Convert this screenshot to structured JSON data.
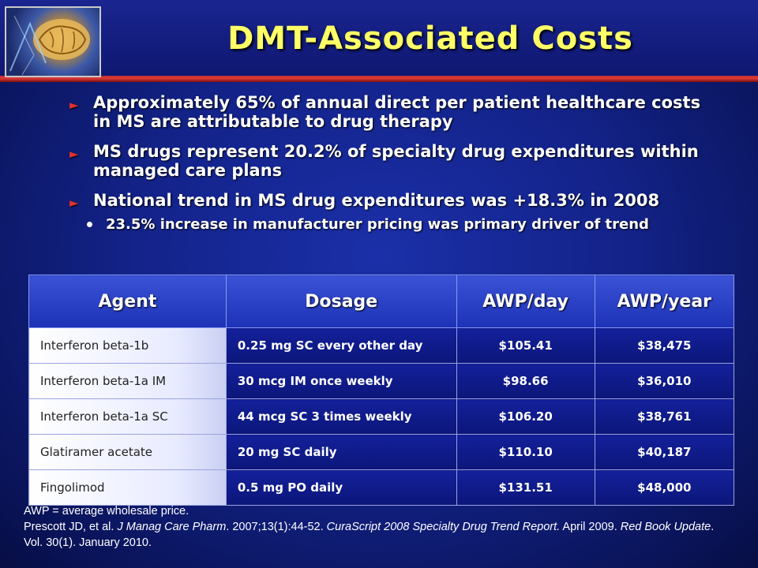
{
  "slide": {
    "title": "DMT-Associated Costs",
    "bullets": [
      "Approximately 65% of annual direct per patient healthcare costs in MS are attributable to drug therapy",
      "MS drugs represent 20.2% of specialty drug expenditures within managed care plans",
      "National trend in MS drug expenditures was +18.3% in 2008"
    ],
    "sub_bullet": "23.5% increase in manufacturer pricing was primary driver of trend"
  },
  "table": {
    "headers": [
      "Agent",
      "Dosage",
      "AWP/day",
      "AWP/year"
    ],
    "rows": [
      [
        "Interferon beta-1b",
        "0.25 mg SC every other day",
        "$105.41",
        "$38,475"
      ],
      [
        "Interferon beta-1a IM",
        "30 mcg IM once weekly",
        "$98.66",
        "$36,010"
      ],
      [
        "Interferon beta-1a SC",
        "44 mcg SC 3 times weekly",
        "$106.20",
        "$38,761"
      ],
      [
        "Glatiramer acetate",
        "20 mg SC daily",
        "$110.10",
        "$40,187"
      ],
      [
        "Fingolimod",
        "0.5 mg PO daily",
        "$131.51",
        "$48,000"
      ]
    ]
  },
  "footnote": {
    "line1": "AWP = average wholesale price.",
    "ref_a": "Prescott JD, et al. ",
    "ref_b": "J Manag Care Pharm",
    "ref_c": ". 2007;13(1):44-52. ",
    "ref_d": "CuraScript 2008 Specialty Drug Trend Report.",
    "ref_e": " April 2009. ",
    "ref_f": "Red Book Update",
    "ref_g": ". Vol. 30(1). January 2010."
  },
  "colors": {
    "title": "#ffff66",
    "accent_red": "#e03030",
    "background": "#13238a"
  },
  "icons": {
    "logo": "brain-image",
    "bullet": "red-arrow-icon",
    "sub_bullet": "white-dot-icon"
  }
}
